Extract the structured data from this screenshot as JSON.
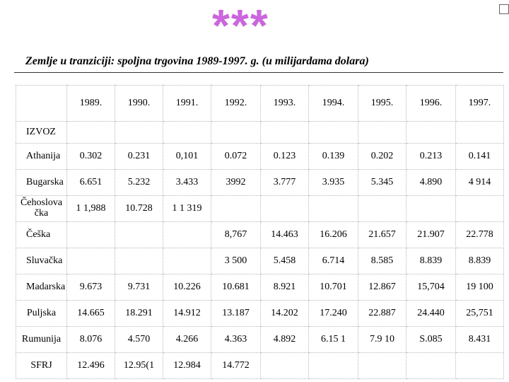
{
  "slide": {
    "decoration": "***",
    "title": "Zemlje u tranziciji: spoljna trgovina 1989-1997. g. (u milijardama dolara)"
  },
  "table": {
    "years": [
      "1989.",
      "1990.",
      "1991.",
      "1992.",
      "1993.",
      "1994.",
      "1995.",
      "1996.",
      "1997."
    ],
    "section": "IZVOZ",
    "rows": [
      {
        "country": "Athanija",
        "values": [
          "0.302",
          "0.231",
          "0,101",
          "0.072",
          "0.123",
          "0.139",
          "0.202",
          "0.213",
          "0.141"
        ]
      },
      {
        "country": "Bugarska",
        "values": [
          "6.651",
          "5.232",
          "3.433",
          "3992",
          "3.777",
          "3.935",
          "5.345",
          "4.890",
          "4 914"
        ]
      },
      {
        "country": "Čehoslova čka",
        "values": [
          "1 1,988",
          "10.728",
          "1 1 319",
          "",
          "",
          "",
          "",
          "",
          ""
        ]
      },
      {
        "country": "Češka",
        "values": [
          "",
          "",
          "",
          "8,767",
          "14.463",
          "16.206",
          "21.657",
          "21.907",
          "22.778"
        ]
      },
      {
        "country": "Sluvačka",
        "values": [
          "",
          "",
          "",
          "3 500",
          "5.458",
          "6.714",
          "8.585",
          "8.839",
          "8.839"
        ]
      },
      {
        "country": "Madarska",
        "values": [
          "9.673",
          "9.731",
          "10.226",
          "10.681",
          "8.921",
          "10.701",
          "12.867",
          "15,704",
          "19 100"
        ]
      },
      {
        "country": "Puljska",
        "values": [
          "14.665",
          "18.291",
          "14.912",
          "13.187",
          "14.202",
          "17.240",
          "22.887",
          "24.440",
          "25,751"
        ]
      },
      {
        "country": "Rumunija",
        "values": [
          "8.076",
          "4.570",
          "4.266",
          "4.363",
          "4.892",
          "6.15 1",
          "7.9 10",
          "S.085",
          "8.431"
        ]
      },
      {
        "country": "SFRJ",
        "values": [
          "12.496",
          "12.95(1",
          "12.984",
          "14.772",
          "",
          "",
          "",
          "",
          ""
        ]
      }
    ]
  }
}
